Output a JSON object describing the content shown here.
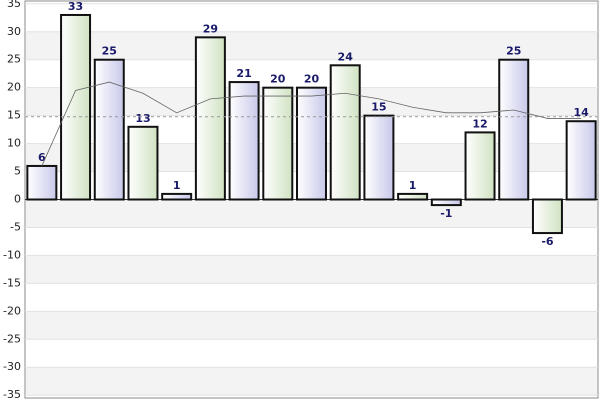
{
  "chart_data": {
    "type": "bar",
    "categories": [
      null,
      null,
      null,
      null,
      null,
      null,
      null,
      null,
      null,
      null,
      null,
      null,
      null,
      null,
      null,
      null,
      null
    ],
    "values": [
      6,
      33,
      25,
      13,
      1,
      29,
      21,
      20,
      20,
      24,
      15,
      1,
      -1,
      12,
      25,
      -6,
      14
    ],
    "colors": [
      "#d8d8f0",
      "#dde9d3"
    ],
    "trend": {
      "color": "#666666",
      "values": [
        6,
        19.5,
        21,
        19,
        15.5,
        18,
        18.5,
        18.5,
        18.5,
        19,
        18,
        16.5,
        15.5,
        15.5,
        16,
        14.5,
        14.5
      ]
    },
    "average": 14.8,
    "ylim": [
      -35.5,
      35.5
    ],
    "yticks": [
      -35,
      -30,
      -25,
      -20,
      -15,
      -10,
      -5,
      0,
      5,
      10,
      15,
      20,
      25,
      30,
      35
    ],
    "grid": true
  }
}
